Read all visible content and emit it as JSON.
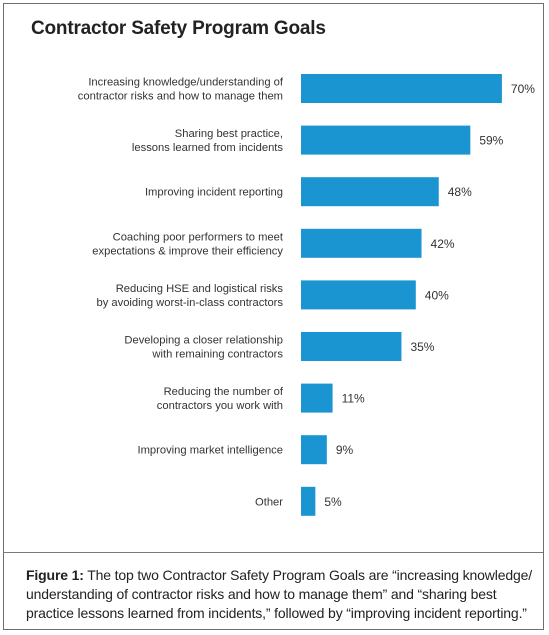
{
  "chart_data": {
    "type": "bar",
    "orientation": "horizontal",
    "title": "Contractor Safety Program Goals",
    "categories": [
      [
        "Increasing knowledge/understanding of",
        "contractor risks and how to manage them"
      ],
      [
        "Sharing best practice,",
        "lessons learned from incidents"
      ],
      [
        "Improving incident reporting"
      ],
      [
        "Coaching poor performers to meet",
        "expectations & improve their efficiency"
      ],
      [
        "Reducing HSE and logistical risks",
        "by avoiding worst-in-class contractors"
      ],
      [
        "Developing a closer relationship",
        "with remaining contractors"
      ],
      [
        "Reducing the number of",
        "contractors you work with"
      ],
      [
        "Improving market intelligence"
      ],
      [
        "Other"
      ]
    ],
    "values": [
      70,
      59,
      48,
      42,
      40,
      35,
      11,
      9,
      5
    ],
    "value_labels": [
      "70%",
      "59%",
      "48%",
      "42%",
      "40%",
      "35%",
      "11%",
      "9%",
      "5%"
    ],
    "bar_color": "#1b95d2",
    "grid": false,
    "legend": "none"
  },
  "caption": {
    "lead": "Figure 1:",
    "text": " The top two Contractor Safety Program Goals are “increasing knowledge/ understanding of contractor risks and how to manage them” and “sharing best practice lessons learned from incidents,” followed by “improving incident reporting.”"
  }
}
